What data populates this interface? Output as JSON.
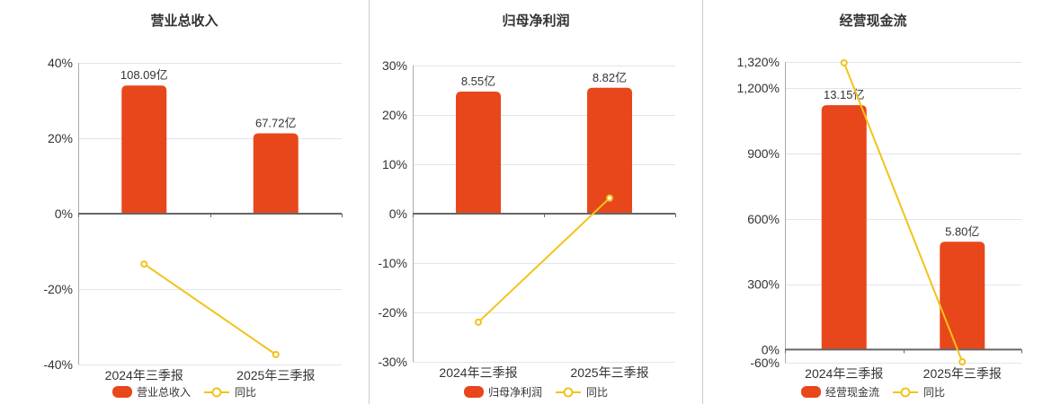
{
  "app": {
    "background": "#ffffff"
  },
  "colors": {
    "bar": "#e8471b",
    "line": "#f2c319",
    "grid": "#e0e4f0",
    "zero_axis": "#666666",
    "axis_line": "#aaaaaa",
    "text": "#333333",
    "divider": "#cccccc",
    "marker_fill": "#ffffff"
  },
  "chart_data": [
    {
      "type": "bar+line",
      "title": "营业总收入",
      "categories": [
        "2024年三季报",
        "2025年三季报"
      ],
      "bar": {
        "name": "营业总收入",
        "unit": "亿",
        "values": [
          108.09,
          67.72
        ],
        "labels": [
          "108.09亿",
          "67.72亿"
        ]
      },
      "line": {
        "name": "同比",
        "unit": "%",
        "values": [
          -13.35,
          -37.35
        ]
      },
      "ylim": [
        -40,
        40
      ],
      "yticks": [
        {
          "value": 40,
          "label": "40%"
        },
        {
          "value": 20,
          "label": "20%"
        },
        {
          "value": 0,
          "label": "0%"
        },
        {
          "value": -20,
          "label": "-20%"
        },
        {
          "value": -40,
          "label": "-40%"
        }
      ],
      "grid": true,
      "legend_position": "bottom"
    },
    {
      "type": "bar+line",
      "title": "归母净利润",
      "categories": [
        "2024年三季报",
        "2025年三季报"
      ],
      "bar": {
        "name": "归母净利润",
        "unit": "亿",
        "values": [
          8.55,
          8.82
        ],
        "labels": [
          "8.55亿",
          "8.82亿"
        ]
      },
      "line": {
        "name": "同比",
        "unit": "%",
        "values": [
          -21.97,
          3.16
        ]
      },
      "ylim": [
        -30,
        30
      ],
      "yticks": [
        {
          "value": 30,
          "label": "30%"
        },
        {
          "value": 20,
          "label": "20%"
        },
        {
          "value": 10,
          "label": "10%"
        },
        {
          "value": 0,
          "label": "0%"
        },
        {
          "value": -10,
          "label": "-10%"
        },
        {
          "value": -20,
          "label": "-20%"
        },
        {
          "value": -30,
          "label": "-30%"
        }
      ],
      "grid": true,
      "legend_position": "bottom"
    },
    {
      "type": "bar+line",
      "title": "经营现金流",
      "categories": [
        "2024年三季报",
        "2025年三季报"
      ],
      "bar": {
        "name": "经营现金流",
        "unit": "亿",
        "values": [
          13.15,
          5.8
        ],
        "labels": [
          "13.15亿",
          "5.80亿"
        ]
      },
      "line": {
        "name": "同比",
        "unit": "%",
        "values": [
          1316.0,
          -55.89
        ]
      },
      "ylim": [
        -60,
        1320
      ],
      "yticks": [
        {
          "value": 1320,
          "label": "1,320%"
        },
        {
          "value": 1200,
          "label": "1,200%"
        },
        {
          "value": 900,
          "label": "900%"
        },
        {
          "value": 600,
          "label": "600%"
        },
        {
          "value": 300,
          "label": "300%"
        },
        {
          "value": 0,
          "label": "0%"
        },
        {
          "value": -60,
          "label": "-60%"
        }
      ],
      "grid": true,
      "legend_position": "bottom"
    }
  ]
}
